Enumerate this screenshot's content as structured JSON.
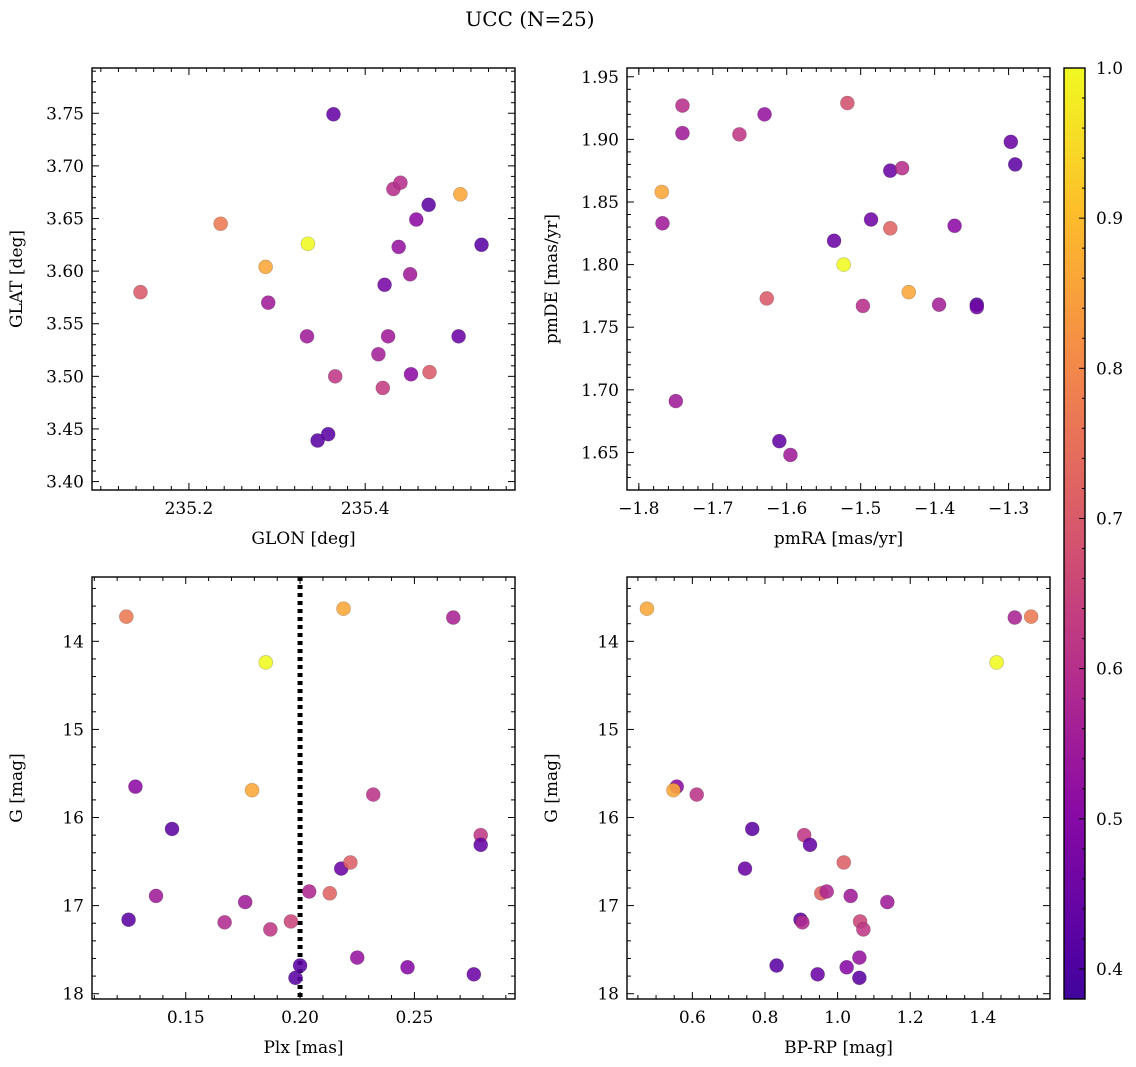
{
  "figure": {
    "title": "UCC (N=25)"
  },
  "colorbar": {
    "min": 0.38,
    "max": 1.0,
    "ticks": [
      0.4,
      0.5,
      0.6,
      0.7,
      0.8,
      0.9,
      1.0
    ],
    "tick_labels": [
      "0.4",
      "0.5",
      "0.6",
      "0.7",
      "0.8",
      "0.9",
      "1.0"
    ],
    "colormap": "plasma"
  },
  "chart_data": [
    {
      "type": "scatter",
      "name": "glon-glat",
      "xlabel": "GLON [deg]",
      "ylabel": "GLAT [deg]",
      "xlim": [
        235.09,
        235.57
      ],
      "ylim": [
        3.392,
        3.793
      ],
      "y_inverted": false,
      "xticks": [
        235.2,
        235.4
      ],
      "xtick_labels": [
        "235.2",
        "235.4"
      ],
      "xminor": [
        235.1,
        235.12,
        235.14,
        235.16,
        235.18,
        235.22,
        235.24,
        235.26,
        235.28,
        235.3,
        235.32,
        235.34,
        235.36,
        235.38,
        235.42,
        235.44,
        235.46,
        235.48,
        235.5,
        235.52,
        235.54,
        235.56
      ],
      "yticks": [
        3.4,
        3.45,
        3.5,
        3.55,
        3.6,
        3.65,
        3.7,
        3.75
      ],
      "ytick_labels": [
        "3.40",
        "3.45",
        "3.50",
        "3.55",
        "3.60",
        "3.65",
        "3.70",
        "3.75"
      ],
      "yminor": [
        3.41,
        3.42,
        3.43,
        3.44,
        3.46,
        3.47,
        3.48,
        3.49,
        3.51,
        3.52,
        3.53,
        3.54,
        3.56,
        3.57,
        3.58,
        3.59,
        3.61,
        3.62,
        3.63,
        3.64,
        3.66,
        3.67,
        3.68,
        3.69,
        3.71,
        3.72,
        3.73,
        3.74,
        3.76,
        3.77,
        3.78,
        3.79
      ],
      "points": [
        {
          "x": 235.145,
          "y": 3.58,
          "c": 0.7
        },
        {
          "x": 235.236,
          "y": 3.645,
          "c": 0.77
        },
        {
          "x": 235.287,
          "y": 3.604,
          "c": 0.86
        },
        {
          "x": 235.29,
          "y": 3.57,
          "c": 0.55
        },
        {
          "x": 235.334,
          "y": 3.538,
          "c": 0.55
        },
        {
          "x": 235.335,
          "y": 3.626,
          "c": 1.0
        },
        {
          "x": 235.346,
          "y": 3.439,
          "c": 0.42
        },
        {
          "x": 235.358,
          "y": 3.445,
          "c": 0.42
        },
        {
          "x": 235.364,
          "y": 3.749,
          "c": 0.44
        },
        {
          "x": 235.366,
          "y": 3.5,
          "c": 0.62
        },
        {
          "x": 235.415,
          "y": 3.521,
          "c": 0.56
        },
        {
          "x": 235.42,
          "y": 3.489,
          "c": 0.63
        },
        {
          "x": 235.422,
          "y": 3.587,
          "c": 0.47
        },
        {
          "x": 235.426,
          "y": 3.538,
          "c": 0.55
        },
        {
          "x": 235.432,
          "y": 3.678,
          "c": 0.6
        },
        {
          "x": 235.438,
          "y": 3.623,
          "c": 0.53
        },
        {
          "x": 235.44,
          "y": 3.684,
          "c": 0.6
        },
        {
          "x": 235.451,
          "y": 3.597,
          "c": 0.55
        },
        {
          "x": 235.452,
          "y": 3.502,
          "c": 0.51
        },
        {
          "x": 235.458,
          "y": 3.649,
          "c": 0.51
        },
        {
          "x": 235.472,
          "y": 3.663,
          "c": 0.43
        },
        {
          "x": 235.473,
          "y": 3.504,
          "c": 0.7
        },
        {
          "x": 235.506,
          "y": 3.538,
          "c": 0.45
        },
        {
          "x": 235.508,
          "y": 3.673,
          "c": 0.86
        },
        {
          "x": 235.532,
          "y": 3.625,
          "c": 0.42
        }
      ]
    },
    {
      "type": "scatter",
      "name": "pmra-pmde",
      "xlabel": "pmRA [mas/yr]",
      "ylabel": "pmDE [mas/yr]",
      "xlim": [
        -1.816,
        -1.244
      ],
      "ylim": [
        1.62,
        1.957
      ],
      "y_inverted": false,
      "xticks": [
        -1.8,
        -1.7,
        -1.6,
        -1.5,
        -1.4,
        -1.3
      ],
      "xtick_labels": [
        "−1.8",
        "−1.7",
        "−1.6",
        "−1.5",
        "−1.4",
        "−1.3"
      ],
      "xminor": [
        -1.8,
        -1.78,
        -1.76,
        -1.74,
        -1.72,
        -1.68,
        -1.66,
        -1.64,
        -1.62,
        -1.58,
        -1.56,
        -1.54,
        -1.52,
        -1.48,
        -1.46,
        -1.44,
        -1.42,
        -1.38,
        -1.36,
        -1.34,
        -1.32,
        -1.28,
        -1.26
      ],
      "yticks": [
        1.65,
        1.7,
        1.75,
        1.8,
        1.85,
        1.9,
        1.95
      ],
      "ytick_labels": [
        "1.65",
        "1.70",
        "1.75",
        "1.80",
        "1.85",
        "1.90",
        "1.95"
      ],
      "yminor": [
        1.63,
        1.64,
        1.66,
        1.67,
        1.68,
        1.69,
        1.71,
        1.72,
        1.73,
        1.74,
        1.76,
        1.77,
        1.78,
        1.79,
        1.81,
        1.82,
        1.83,
        1.84,
        1.86,
        1.87,
        1.88,
        1.89,
        1.91,
        1.92,
        1.93,
        1.94
      ],
      "points": [
        {
          "x": -1.769,
          "y": 1.858,
          "c": 0.86
        },
        {
          "x": -1.768,
          "y": 1.833,
          "c": 0.55
        },
        {
          "x": -1.75,
          "y": 1.691,
          "c": 0.55
        },
        {
          "x": -1.741,
          "y": 1.927,
          "c": 0.6
        },
        {
          "x": -1.741,
          "y": 1.905,
          "c": 0.55
        },
        {
          "x": -1.664,
          "y": 1.904,
          "c": 0.62
        },
        {
          "x": -1.63,
          "y": 1.92,
          "c": 0.53
        },
        {
          "x": -1.627,
          "y": 1.773,
          "c": 0.7
        },
        {
          "x": -1.61,
          "y": 1.659,
          "c": 0.44
        },
        {
          "x": -1.595,
          "y": 1.648,
          "c": 0.55
        },
        {
          "x": -1.536,
          "y": 1.819,
          "c": 0.45
        },
        {
          "x": -1.523,
          "y": 1.8,
          "c": 1.0
        },
        {
          "x": -1.518,
          "y": 1.929,
          "c": 0.68
        },
        {
          "x": -1.497,
          "y": 1.767,
          "c": 0.6
        },
        {
          "x": -1.486,
          "y": 1.836,
          "c": 0.46
        },
        {
          "x": -1.46,
          "y": 1.875,
          "c": 0.45
        },
        {
          "x": -1.46,
          "y": 1.829,
          "c": 0.72
        },
        {
          "x": -1.444,
          "y": 1.877,
          "c": 0.6
        },
        {
          "x": -1.435,
          "y": 1.778,
          "c": 0.86
        },
        {
          "x": -1.394,
          "y": 1.768,
          "c": 0.56
        },
        {
          "x": -1.373,
          "y": 1.831,
          "c": 0.51
        },
        {
          "x": -1.343,
          "y": 1.768,
          "c": 0.42
        },
        {
          "x": -1.343,
          "y": 1.766,
          "c": 0.46
        },
        {
          "x": -1.297,
          "y": 1.898,
          "c": 0.45
        },
        {
          "x": -1.291,
          "y": 1.88,
          "c": 0.43
        }
      ]
    },
    {
      "type": "scatter",
      "name": "plx-g",
      "xlabel": "Plx [mas]",
      "ylabel": "G [mag]",
      "xlim": [
        0.109,
        0.294
      ],
      "ylim": [
        18.06,
        13.27
      ],
      "y_inverted": true,
      "vline": {
        "x": 0.2,
        "style": "dotted"
      },
      "xticks": [
        0.15,
        0.2,
        0.25
      ],
      "xtick_labels": [
        "0.15",
        "0.20",
        "0.25"
      ],
      "xminor": [
        0.11,
        0.12,
        0.13,
        0.14,
        0.16,
        0.17,
        0.18,
        0.19,
        0.21,
        0.22,
        0.23,
        0.24,
        0.26,
        0.27,
        0.28,
        0.29
      ],
      "yticks": [
        14,
        15,
        16,
        17,
        18
      ],
      "ytick_labels": [
        "14",
        "15",
        "16",
        "17",
        "18"
      ],
      "yminor": [
        13.4,
        13.6,
        13.8,
        14.2,
        14.4,
        14.6,
        14.8,
        15.2,
        15.4,
        15.6,
        15.8,
        16.2,
        16.4,
        16.6,
        16.8,
        17.2,
        17.4,
        17.6,
        17.8
      ],
      "points": [
        {
          "x": 0.124,
          "y": 13.72,
          "c": 0.77
        },
        {
          "x": 0.125,
          "y": 17.16,
          "c": 0.43
        },
        {
          "x": 0.128,
          "y": 15.65,
          "c": 0.51
        },
        {
          "x": 0.137,
          "y": 16.89,
          "c": 0.55
        },
        {
          "x": 0.144,
          "y": 16.13,
          "c": 0.43
        },
        {
          "x": 0.167,
          "y": 17.19,
          "c": 0.59
        },
        {
          "x": 0.176,
          "y": 16.96,
          "c": 0.55
        },
        {
          "x": 0.179,
          "y": 15.69,
          "c": 0.86
        },
        {
          "x": 0.185,
          "y": 14.24,
          "c": 1.0
        },
        {
          "x": 0.187,
          "y": 17.27,
          "c": 0.62
        },
        {
          "x": 0.196,
          "y": 17.18,
          "c": 0.65
        },
        {
          "x": 0.198,
          "y": 17.82,
          "c": 0.42
        },
        {
          "x": 0.2,
          "y": 17.68,
          "c": 0.42
        },
        {
          "x": 0.204,
          "y": 16.84,
          "c": 0.58
        },
        {
          "x": 0.213,
          "y": 16.86,
          "c": 0.72
        },
        {
          "x": 0.218,
          "y": 16.58,
          "c": 0.45
        },
        {
          "x": 0.219,
          "y": 13.63,
          "c": 0.86
        },
        {
          "x": 0.222,
          "y": 16.51,
          "c": 0.71
        },
        {
          "x": 0.225,
          "y": 17.59,
          "c": 0.53
        },
        {
          "x": 0.232,
          "y": 15.74,
          "c": 0.61
        },
        {
          "x": 0.247,
          "y": 17.7,
          "c": 0.5
        },
        {
          "x": 0.267,
          "y": 13.73,
          "c": 0.57
        },
        {
          "x": 0.276,
          "y": 17.78,
          "c": 0.45
        },
        {
          "x": 0.279,
          "y": 16.2,
          "c": 0.62
        },
        {
          "x": 0.279,
          "y": 16.31,
          "c": 0.44
        }
      ]
    },
    {
      "type": "scatter",
      "name": "bprp-g",
      "xlabel": "BP-RP [mag]",
      "ylabel": "G [mag]",
      "xlim": [
        0.42,
        1.585
      ],
      "ylim": [
        18.06,
        13.27
      ],
      "y_inverted": true,
      "xticks": [
        0.6,
        0.8,
        1.0,
        1.2,
        1.4
      ],
      "xtick_labels": [
        "0.6",
        "0.8",
        "1.0",
        "1.2",
        "1.4"
      ],
      "xminor": [
        0.45,
        0.5,
        0.55,
        0.65,
        0.7,
        0.75,
        0.85,
        0.9,
        0.95,
        1.05,
        1.1,
        1.15,
        1.25,
        1.3,
        1.35,
        1.45,
        1.5,
        1.55
      ],
      "yticks": [
        14,
        15,
        16,
        17,
        18
      ],
      "ytick_labels": [
        "14",
        "15",
        "16",
        "17",
        "18"
      ],
      "yminor": [
        13.4,
        13.6,
        13.8,
        14.2,
        14.4,
        14.6,
        14.8,
        15.2,
        15.4,
        15.6,
        15.8,
        16.2,
        16.4,
        16.6,
        16.8,
        17.2,
        17.4,
        17.6,
        17.8
      ],
      "points": [
        {
          "x": 0.475,
          "y": 13.63,
          "c": 0.86
        },
        {
          "x": 0.557,
          "y": 15.65,
          "c": 0.51
        },
        {
          "x": 0.548,
          "y": 15.69,
          "c": 0.86
        },
        {
          "x": 0.612,
          "y": 15.74,
          "c": 0.61
        },
        {
          "x": 0.745,
          "y": 16.58,
          "c": 0.45
        },
        {
          "x": 0.765,
          "y": 16.13,
          "c": 0.43
        },
        {
          "x": 0.832,
          "y": 17.68,
          "c": 0.42
        },
        {
          "x": 0.898,
          "y": 17.16,
          "c": 0.43
        },
        {
          "x": 0.903,
          "y": 17.19,
          "c": 0.59
        },
        {
          "x": 0.908,
          "y": 16.2,
          "c": 0.62
        },
        {
          "x": 0.924,
          "y": 16.31,
          "c": 0.44
        },
        {
          "x": 0.945,
          "y": 17.78,
          "c": 0.45
        },
        {
          "x": 0.955,
          "y": 16.86,
          "c": 0.72
        },
        {
          "x": 0.97,
          "y": 16.84,
          "c": 0.58
        },
        {
          "x": 1.017,
          "y": 16.51,
          "c": 0.71
        },
        {
          "x": 1.025,
          "y": 17.7,
          "c": 0.5
        },
        {
          "x": 1.036,
          "y": 16.89,
          "c": 0.55
        },
        {
          "x": 1.06,
          "y": 17.59,
          "c": 0.53
        },
        {
          "x": 1.06,
          "y": 17.82,
          "c": 0.42
        },
        {
          "x": 1.062,
          "y": 17.18,
          "c": 0.65
        },
        {
          "x": 1.071,
          "y": 17.27,
          "c": 0.62
        },
        {
          "x": 1.137,
          "y": 16.96,
          "c": 0.55
        },
        {
          "x": 1.438,
          "y": 14.24,
          "c": 1.0
        },
        {
          "x": 1.488,
          "y": 13.73,
          "c": 0.57
        },
        {
          "x": 1.533,
          "y": 13.72,
          "c": 0.77
        }
      ]
    }
  ]
}
